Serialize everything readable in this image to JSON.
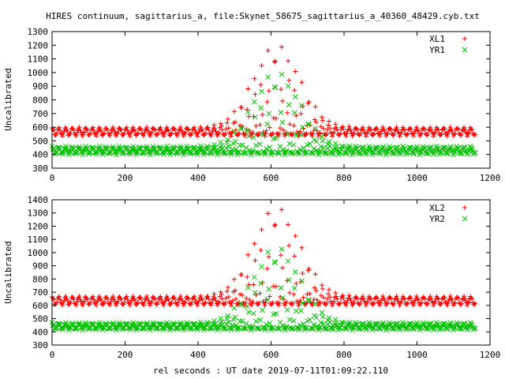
{
  "title": "HIRES continuum, sagittarius_a, file:Skynet_58675_sagittarius_a_40360_48429.cyb.txt",
  "xlabel": "rel seconds : UT date 2019-07-11T01:09:22.110",
  "colors": {
    "series_a": "#ff0000",
    "series_b": "#00c000",
    "axis": "#000000"
  },
  "chart_data": [
    {
      "type": "scatter",
      "ylabel": "Uncalibrated",
      "xlim": [
        0,
        1200
      ],
      "ylim": [
        300,
        1300
      ],
      "xticks": [
        "0",
        "200",
        "400",
        "600",
        "800",
        "1000",
        "1200"
      ],
      "yticks": [
        "300",
        "400",
        "500",
        "600",
        "700",
        "800",
        "900",
        "1000",
        "1100",
        "1200",
        "1300"
      ],
      "legend_position": "top-right",
      "x_extent": [
        0,
        1160
      ],
      "period": 18.5,
      "series": [
        {
          "name": "XL1",
          "marker": "plus",
          "color": "#ff0000",
          "base": 540,
          "amplitude": 55,
          "peak_top": 1200,
          "peak_center": 615,
          "peak_width": 90
        },
        {
          "name": "YR1",
          "marker": "cross",
          "color": "#00c000",
          "base": 405,
          "amplitude": 50,
          "peak_top": 1000,
          "peak_center": 615,
          "peak_width": 90
        }
      ]
    },
    {
      "type": "scatter",
      "ylabel": "Uncalibrated",
      "xlim": [
        0,
        1200
      ],
      "ylim": [
        300,
        1400
      ],
      "xticks": [
        "0",
        "200",
        "400",
        "600",
        "800",
        "1000",
        "1200"
      ],
      "yticks": [
        "300",
        "400",
        "500",
        "600",
        "700",
        "800",
        "900",
        "1000",
        "1100",
        "1200",
        "1300",
        "1400"
      ],
      "legend_position": "top-right",
      "x_extent": [
        0,
        1160
      ],
      "period": 18.5,
      "series": [
        {
          "name": "XL2",
          "marker": "plus",
          "color": "#ff0000",
          "base": 605,
          "amplitude": 60,
          "peak_top": 1340,
          "peak_center": 615,
          "peak_width": 90
        },
        {
          "name": "YR2",
          "marker": "cross",
          "color": "#00c000",
          "base": 420,
          "amplitude": 45,
          "peak_top": 1040,
          "peak_center": 615,
          "peak_width": 90
        }
      ]
    }
  ]
}
